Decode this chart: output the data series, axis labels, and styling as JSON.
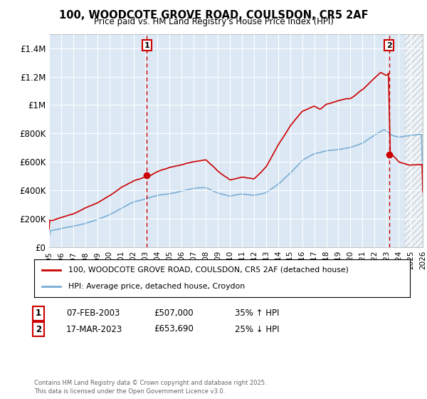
{
  "title1": "100, WOODCOTE GROVE ROAD, COULSDON, CR5 2AF",
  "title2": "Price paid vs. HM Land Registry's House Price Index (HPI)",
  "ylim": [
    0,
    1500000
  ],
  "yticks": [
    0,
    200000,
    400000,
    600000,
    800000,
    1000000,
    1200000,
    1400000
  ],
  "ytick_labels": [
    "£0",
    "£200K",
    "£400K",
    "£600K",
    "£800K",
    "£1M",
    "£1.2M",
    "£1.4M"
  ],
  "background_color": "#ffffff",
  "plot_bg_color": "#dce9f5",
  "grid_color": "#ffffff",
  "sale_color": "#cc0000",
  "hpi_color": "#7aadd4",
  "marker1_x": 2003.1,
  "marker1_y": 507000,
  "marker2_x": 2023.21,
  "marker2_y": 653690,
  "legend_sale": "100, WOODCOTE GROVE ROAD, COULSDON, CR5 2AF (detached house)",
  "legend_hpi": "HPI: Average price, detached house, Croydon",
  "annotation1_date": "07-FEB-2003",
  "annotation1_price": "£507,000",
  "annotation1_hpi": "35% ↑ HPI",
  "annotation2_date": "17-MAR-2023",
  "annotation2_price": "£653,690",
  "annotation2_hpi": "25% ↓ HPI",
  "footnote": "Contains HM Land Registry data © Crown copyright and database right 2025.\nThis data is licensed under the Open Government Licence v3.0.",
  "xmin": 1995,
  "xmax": 2026,
  "future_start": 2024.5
}
